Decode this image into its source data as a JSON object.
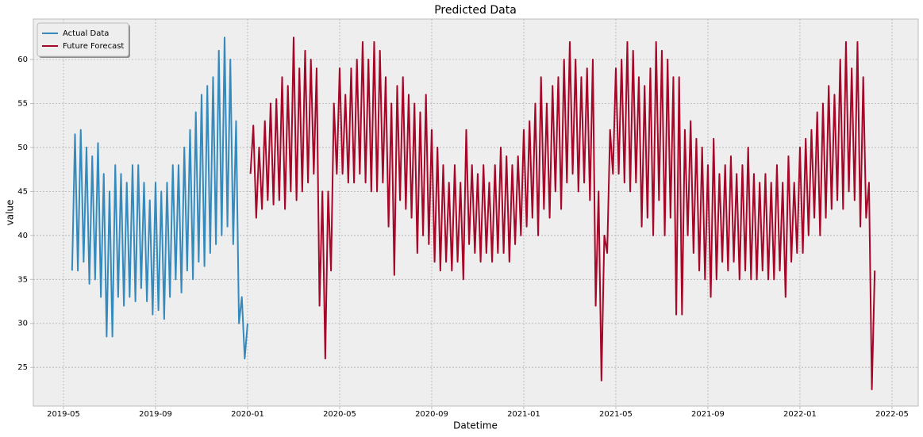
{
  "chart_data": {
    "type": "line",
    "title": "Predicted Data",
    "x_label": "Datetime",
    "y_label": "value",
    "xlim": [
      -1.31,
      37.14
    ],
    "ylim": [
      20.6,
      64.6
    ],
    "xticks": [
      {
        "value": 0,
        "label": "2019-05"
      },
      {
        "value": 4,
        "label": "2019-09"
      },
      {
        "value": 8,
        "label": "2020-01"
      },
      {
        "value": 12,
        "label": "2020-05"
      },
      {
        "value": 16,
        "label": "2020-09"
      },
      {
        "value": 20,
        "label": "2021-01"
      },
      {
        "value": 24,
        "label": "2021-05"
      },
      {
        "value": 28,
        "label": "2021-09"
      },
      {
        "value": 32,
        "label": "2022-01"
      },
      {
        "value": 36,
        "label": "2022-05"
      }
    ],
    "yticks": [
      25,
      30,
      35,
      40,
      45,
      50,
      55,
      60
    ],
    "grid": true,
    "legend": "upper left",
    "series": [
      {
        "name": "Actual Data",
        "color": "#348abd",
        "x": [
          0.375,
          0.5,
          0.625,
          0.75,
          0.875,
          1,
          1.125,
          1.25,
          1.375,
          1.5,
          1.625,
          1.75,
          1.875,
          2,
          2.125,
          2.25,
          2.375,
          2.5,
          2.625,
          2.75,
          2.875,
          3,
          3.125,
          3.25,
          3.375,
          3.5,
          3.625,
          3.75,
          3.875,
          4,
          4.125,
          4.25,
          4.375,
          4.5,
          4.625,
          4.75,
          4.875,
          5,
          5.125,
          5.25,
          5.375,
          5.5,
          5.625,
          5.75,
          5.875,
          6,
          6.125,
          6.25,
          6.375,
          6.5,
          6.625,
          6.75,
          6.875,
          7,
          7.125,
          7.25,
          7.375,
          7.5,
          7.625,
          7.75,
          7.875,
          8
        ],
        "values": [
          36,
          51.5,
          36,
          52,
          37,
          50,
          34.5,
          49,
          35,
          50.5,
          33,
          47,
          28.5,
          45,
          28.5,
          48,
          33,
          47,
          32,
          46,
          33,
          48,
          32.5,
          48,
          34,
          46,
          32.5,
          44,
          31,
          46,
          31.5,
          45,
          30.5,
          46,
          33,
          48,
          35,
          48,
          33.5,
          50,
          36,
          52,
          35,
          54,
          37,
          56,
          36.5,
          57,
          38,
          58,
          39,
          61,
          40,
          62.5,
          41,
          60,
          39,
          53,
          30,
          33,
          26,
          30
        ]
      },
      {
        "name": "Future Forecast",
        "color": "#a60628",
        "x": [
          8.125,
          8.25,
          8.375,
          8.5,
          8.625,
          8.75,
          8.875,
          9,
          9.125,
          9.25,
          9.375,
          9.5,
          9.625,
          9.75,
          9.875,
          10,
          10.125,
          10.25,
          10.375,
          10.5,
          10.625,
          10.75,
          10.875,
          11,
          11.125,
          11.25,
          11.375,
          11.5,
          11.625,
          11.75,
          11.875,
          12,
          12.125,
          12.25,
          12.375,
          12.5,
          12.625,
          12.75,
          12.875,
          13,
          13.125,
          13.25,
          13.375,
          13.5,
          13.625,
          13.75,
          13.875,
          14,
          14.125,
          14.25,
          14.375,
          14.5,
          14.625,
          14.75,
          14.875,
          15,
          15.125,
          15.25,
          15.375,
          15.5,
          15.625,
          15.75,
          15.875,
          16,
          16.125,
          16.25,
          16.375,
          16.5,
          16.625,
          16.75,
          16.875,
          17,
          17.125,
          17.25,
          17.375,
          17.5,
          17.625,
          17.75,
          17.875,
          18,
          18.125,
          18.25,
          18.375,
          18.5,
          18.625,
          18.75,
          18.875,
          19,
          19.125,
          19.25,
          19.375,
          19.5,
          19.625,
          19.75,
          19.875,
          20,
          20.125,
          20.25,
          20.375,
          20.5,
          20.625,
          20.75,
          20.875,
          21,
          21.125,
          21.25,
          21.375,
          21.5,
          21.625,
          21.75,
          21.875,
          22,
          22.125,
          22.25,
          22.375,
          22.5,
          22.625,
          22.75,
          22.875,
          23,
          23.125,
          23.25,
          23.375,
          23.5,
          23.625,
          23.75,
          23.875,
          24,
          24.125,
          24.25,
          24.375,
          24.5,
          24.625,
          24.75,
          24.875,
          25,
          25.125,
          25.25,
          25.375,
          25.5,
          25.625,
          25.75,
          25.875,
          26,
          26.125,
          26.25,
          26.375,
          26.5,
          26.625,
          26.75,
          26.875,
          27,
          27.125,
          27.25,
          27.375,
          27.5,
          27.625,
          27.75,
          27.875,
          28,
          28.125,
          28.25,
          28.375,
          28.5,
          28.625,
          28.75,
          28.875,
          29,
          29.125,
          29.25,
          29.375,
          29.5,
          29.625,
          29.75,
          29.875,
          30,
          30.125,
          30.25,
          30.375,
          30.5,
          30.625,
          30.75,
          30.875,
          31,
          31.125,
          31.25,
          31.375,
          31.5,
          31.625,
          31.75,
          31.875,
          32,
          32.125,
          32.25,
          32.375,
          32.5,
          32.625,
          32.75,
          32.875,
          33,
          33.125,
          33.25,
          33.375,
          33.5,
          33.625,
          33.75,
          33.875,
          34,
          34.125,
          34.25,
          34.375,
          34.5,
          34.625,
          34.75,
          34.875,
          35,
          35.125,
          35.25
        ],
        "values": [
          47,
          52.5,
          42,
          50,
          43,
          53,
          44,
          55,
          43.5,
          55.5,
          44,
          58,
          43,
          57,
          45,
          62.5,
          44,
          59,
          45,
          61,
          46,
          60,
          47,
          59,
          32,
          45,
          26,
          45,
          36,
          55,
          47,
          59,
          47,
          56,
          46,
          59,
          46,
          60,
          47,
          62,
          46,
          60,
          45,
          62,
          45,
          61,
          46,
          58,
          41,
          55,
          35.5,
          57,
          44,
          58,
          43,
          56,
          42,
          55,
          38,
          54,
          40,
          56,
          39,
          52,
          37,
          50,
          36,
          48,
          37,
          46,
          36,
          48,
          37,
          46,
          35,
          52,
          39,
          48,
          38,
          47,
          37,
          48,
          38,
          46,
          37,
          48,
          38,
          50,
          38,
          49,
          37,
          48,
          39,
          49,
          40,
          52,
          41,
          53,
          42,
          55,
          40,
          58,
          43,
          55,
          42,
          57,
          45,
          58,
          43,
          60,
          46,
          62,
          47,
          60,
          45,
          58,
          46,
          59,
          44,
          60,
          32,
          45,
          23.5,
          40,
          38,
          52,
          47,
          59,
          47,
          60,
          46,
          62,
          45,
          61,
          46,
          58,
          41,
          57,
          42,
          59,
          40,
          62,
          44,
          61,
          40,
          60,
          42,
          58,
          31,
          58,
          31,
          52,
          40,
          53,
          38,
          51,
          36,
          50,
          35,
          48,
          33,
          51,
          35,
          47,
          37,
          48,
          36,
          49,
          37,
          47,
          35,
          48,
          36,
          50,
          35,
          47,
          35,
          46,
          36,
          47,
          35,
          46,
          35,
          48,
          36,
          46,
          33,
          49,
          37,
          46,
          38,
          50,
          38,
          51,
          40,
          52,
          42,
          54,
          40,
          55,
          42,
          57,
          43,
          56,
          44,
          60,
          43,
          62,
          45,
          59,
          44,
          62,
          41,
          58,
          42,
          46,
          22.5,
          36
        ]
      }
    ]
  }
}
